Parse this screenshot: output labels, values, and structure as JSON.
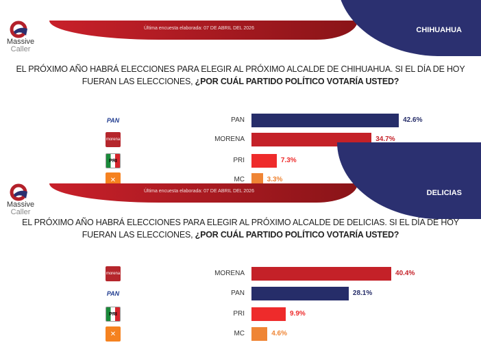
{
  "brand": {
    "line1": "Massive",
    "line2": "Caller"
  },
  "colors": {
    "PAN": "#262d69",
    "MORENA": "#c42128",
    "PRI": "#ee2b2b",
    "MC": "#ef8535"
  },
  "chart_data": [
    {
      "type": "bar",
      "orientation": "horizontal",
      "region": "CHIHUAHUA",
      "date_label": "Última encuesta elaborada: 07 DE ABRIL DEL 2026",
      "title": "EL PRÓXIMO AÑO HABRÁ ELECCIONES PARA ELEGIR AL PRÓXIMO ALCALDE DE CHIHUAHUA. SI EL DÍA DE HOY FUERAN LAS ELECCIONES,",
      "title_bold": "¿POR CUÁL PARTIDO POLÍTICO VOTARÍA USTED?",
      "categories": [
        "PAN",
        "MORENA",
        "PRI",
        "MC"
      ],
      "values": [
        42.6,
        34.7,
        7.3,
        3.3
      ],
      "labels": [
        "42.6%",
        "34.7%",
        "7.3%",
        "3.3%"
      ],
      "xlim": [
        0,
        50
      ]
    },
    {
      "type": "bar",
      "orientation": "horizontal",
      "region": "DELICIAS",
      "date_label": "Última encuesta elaborada: 07 DE ABRIL DEL 2026",
      "title": "EL PRÓXIMO AÑO HABRÁ ELECCIONES PARA ELEGIR AL PRÓXIMO ALCALDE DE DELICIAS. SI EL DÍA DE HOY FUERAN LAS ELECCIONES,",
      "title_bold": "¿POR CUÁL PARTIDO POLÍTICO VOTARÍA USTED?",
      "categories": [
        "MORENA",
        "PAN",
        "PRI",
        "MC"
      ],
      "values": [
        40.4,
        28.1,
        9.9,
        4.6
      ],
      "labels": [
        "40.4%",
        "28.1%",
        "9.9%",
        "4.6%"
      ],
      "xlim": [
        0,
        50
      ]
    }
  ]
}
